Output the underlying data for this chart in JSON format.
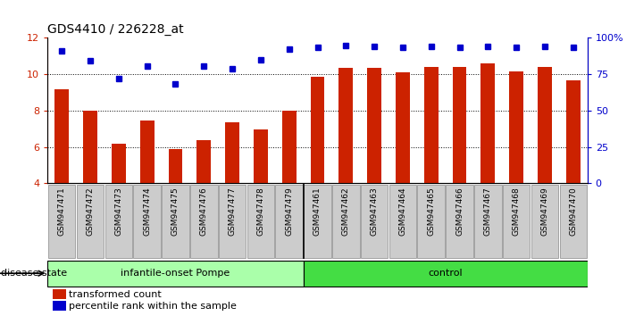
{
  "title": "GDS4410 / 226228_at",
  "samples": [
    "GSM947471",
    "GSM947472",
    "GSM947473",
    "GSM947474",
    "GSM947475",
    "GSM947476",
    "GSM947477",
    "GSM947478",
    "GSM947479",
    "GSM947461",
    "GSM947462",
    "GSM947463",
    "GSM947464",
    "GSM947465",
    "GSM947466",
    "GSM947467",
    "GSM947468",
    "GSM947469",
    "GSM947470"
  ],
  "bar_values": [
    9.15,
    8.0,
    6.2,
    7.45,
    5.9,
    6.35,
    7.35,
    6.95,
    8.0,
    9.85,
    10.35,
    10.35,
    10.1,
    10.4,
    10.4,
    10.6,
    10.15,
    10.4,
    9.65
  ],
  "dot_values": [
    11.3,
    10.75,
    9.75,
    10.45,
    9.45,
    10.45,
    10.3,
    10.8,
    11.4,
    11.5,
    11.6,
    11.55,
    11.5,
    11.55,
    11.5,
    11.55,
    11.5,
    11.55,
    11.5
  ],
  "group_first_count": 9,
  "groups": [
    {
      "label": "infantile-onset Pompe",
      "color": "#AAFFAA"
    },
    {
      "label": "control",
      "color": "#44DD44"
    }
  ],
  "bar_color": "#CC2200",
  "dot_color": "#0000CC",
  "ylim_left": [
    4,
    12
  ],
  "ylim_right": [
    0,
    100
  ],
  "yticks_left": [
    4,
    6,
    8,
    10,
    12
  ],
  "yticks_right": [
    0,
    25,
    50,
    75,
    100
  ],
  "grid_values": [
    6,
    8,
    10
  ],
  "legend_items": [
    {
      "label": "transformed count",
      "color": "#CC2200"
    },
    {
      "label": "percentile rank within the sample",
      "color": "#0000CC"
    }
  ],
  "disease_state_label": "disease state",
  "background_color": "#ffffff",
  "bar_bottom": 4,
  "tick_bg_color": "#CCCCCC",
  "tick_border_color": "#888888"
}
